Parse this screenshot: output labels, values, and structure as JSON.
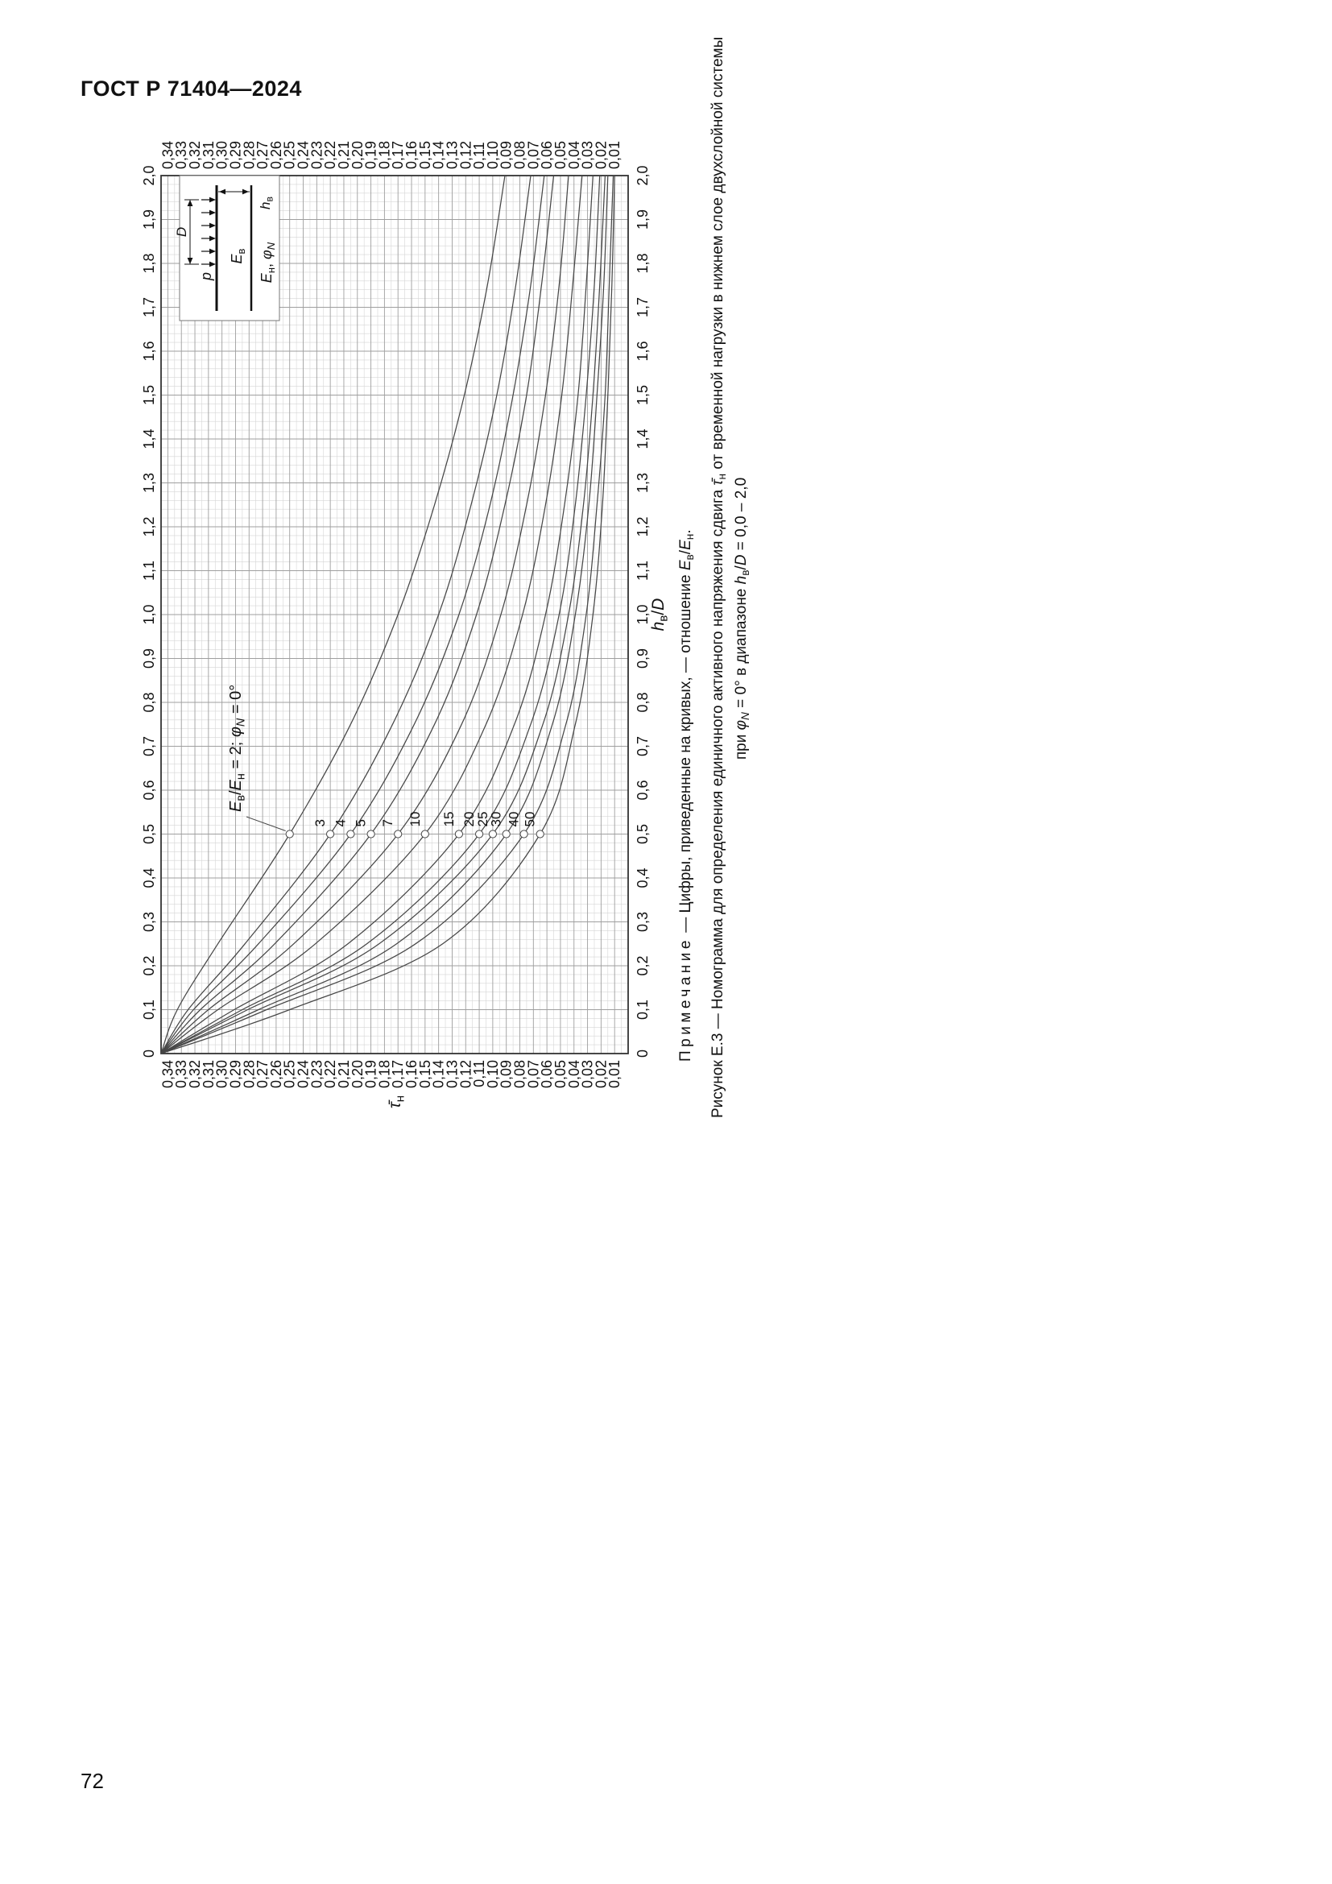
{
  "page": {
    "header": "ГОСТ Р 71404—2024",
    "page_number": "72"
  },
  "chart_data": {
    "type": "line",
    "grid": "on",
    "x_axis": {
      "min": 0,
      "max": 2.0,
      "major_step": 0.1,
      "minor_step": 0.02,
      "tick_labels": [
        "0",
        "0,1",
        "0,2",
        "0,3",
        "0,4",
        "0,5",
        "0,6",
        "0,7",
        "0,8",
        "0,9",
        "1,0",
        "1,1",
        "1,2",
        "1,3",
        "1,4",
        "1,5",
        "1,6",
        "1,7",
        "1,8",
        "1,9",
        "2,0"
      ],
      "title_segments": [
        {
          "t": "h",
          "i": true
        },
        {
          "t": "в",
          "sub": true
        },
        {
          "t": "/"
        },
        {
          "t": "D",
          "i": true
        }
      ]
    },
    "y_axis": {
      "min": 0,
      "max": 0.345,
      "major_step": 0.01,
      "minor_step": 0.005,
      "tick_labels": [
        "0,01",
        "0,02",
        "0,03",
        "0,04",
        "0,05",
        "0,06",
        "0,07",
        "0,08",
        "0,09",
        "0,10",
        "0,11",
        "0,12",
        "0,13",
        "0,14",
        "0,15",
        "0,16",
        "0,17",
        "0,18",
        "0,19",
        "0,20",
        "0,21",
        "0,22",
        "0,23",
        "0,24",
        "0,25",
        "0,26",
        "0,27",
        "0,28",
        "0,29",
        "0,30",
        "0,31",
        "0,32",
        "0,33",
        "0,34"
      ],
      "title_segments": [
        {
          "t": "τ̄",
          "i": true
        },
        {
          "t": "н",
          "sub": true
        }
      ]
    },
    "sample_x": [
      0,
      0.1,
      0.25,
      0.5,
      0.75,
      1.0,
      1.25,
      1.5,
      1.75,
      2.0
    ],
    "series": [
      {
        "label": "2",
        "tau": [
          0.345,
          0.333,
          0.303,
          0.25,
          0.205,
          0.17,
          0.143,
          0.121,
          0.104,
          0.091
        ]
      },
      {
        "label": "3",
        "tau": [
          0.345,
          0.325,
          0.283,
          0.22,
          0.174,
          0.14,
          0.116,
          0.097,
          0.083,
          0.072
        ]
      },
      {
        "label": "4",
        "tau": [
          0.345,
          0.321,
          0.273,
          0.205,
          0.158,
          0.125,
          0.102,
          0.085,
          0.072,
          0.062
        ]
      },
      {
        "label": "5",
        "tau": [
          0.345,
          0.316,
          0.261,
          0.19,
          0.143,
          0.112,
          0.091,
          0.075,
          0.064,
          0.055
        ]
      },
      {
        "label": "7",
        "tau": [
          0.345,
          0.31,
          0.247,
          0.17,
          0.123,
          0.094,
          0.075,
          0.061,
          0.051,
          0.044
        ]
      },
      {
        "label": "10",
        "tau": [
          0.345,
          0.303,
          0.231,
          0.15,
          0.105,
          0.078,
          0.061,
          0.049,
          0.041,
          0.034
        ]
      },
      {
        "label": "15",
        "tau": [
          0.345,
          0.291,
          0.207,
          0.125,
          0.084,
          0.061,
          0.047,
          0.037,
          0.031,
          0.026
        ]
      },
      {
        "label": "20",
        "tau": [
          0.345,
          0.285,
          0.193,
          0.11,
          0.072,
          0.051,
          0.039,
          0.031,
          0.025,
          0.021
        ]
      },
      {
        "label": "25",
        "tau": [
          0.345,
          0.281,
          0.184,
          0.1,
          0.063,
          0.044,
          0.033,
          0.026,
          0.021,
          0.017
        ]
      },
      {
        "label": "30",
        "tau": [
          0.345,
          0.273,
          0.171,
          0.09,
          0.056,
          0.039,
          0.029,
          0.023,
          0.018,
          0.015
        ]
      },
      {
        "label": "40",
        "tau": [
          0.345,
          0.267,
          0.157,
          0.077,
          0.046,
          0.031,
          0.023,
          0.017,
          0.014,
          0.011
        ]
      },
      {
        "label": "50",
        "tau": [
          0.345,
          0.25,
          0.137,
          0.065,
          0.039,
          0.026,
          0.019,
          0.015,
          0.012,
          0.01
        ]
      }
    ],
    "curve_label_x": 0.5,
    "annotation": {
      "target_label": "2",
      "segments": [
        {
          "t": "E",
          "i": true
        },
        {
          "t": "в",
          "sub": true
        },
        {
          "t": "/"
        },
        {
          "t": "E",
          "i": true
        },
        {
          "t": "н",
          "sub": true
        },
        {
          "t": " = 2; "
        },
        {
          "t": "φ",
          "i": true
        },
        {
          "t": "N",
          "i": true,
          "sub": true
        },
        {
          "t": " = 0°"
        }
      ]
    },
    "inset": {
      "labels": {
        "load": [
          {
            "t": "p",
            "i": true
          }
        ],
        "diameter": [
          {
            "t": "D",
            "i": true
          }
        ],
        "upper_layer": [
          {
            "t": "E",
            "i": true
          },
          {
            "t": "в",
            "sub": true
          }
        ],
        "thickness": [
          {
            "t": "h",
            "i": true
          },
          {
            "t": "в",
            "sub": true
          }
        ],
        "lower_layer": [
          {
            "t": "E",
            "i": true
          },
          {
            "t": "н",
            "sub": true
          },
          {
            "t": ", "
          },
          {
            "t": "φ",
            "i": true
          },
          {
            "t": "N",
            "i": true,
            "sub": true
          }
        ]
      }
    },
    "note_segments": [
      {
        "t": "Примечание",
        "sp": true
      },
      {
        "t": " — Цифры, приведенные на кривых, — отношение "
      },
      {
        "t": "E",
        "i": true
      },
      {
        "t": "в",
        "sub": true
      },
      {
        "t": "/"
      },
      {
        "t": "E",
        "i": true
      },
      {
        "t": "н",
        "sub": true
      },
      {
        "t": "."
      }
    ],
    "caption_line1_segments": [
      {
        "t": "Рисунок Е.3 — Номограмма для определения единичного активного напряжения сдвига "
      },
      {
        "t": "τ̄",
        "i": true
      },
      {
        "t": "н",
        "sub": true
      },
      {
        "t": " от временной нагрузки в нижнем слое двухслойной системы"
      }
    ],
    "caption_line2_segments": [
      {
        "t": "при "
      },
      {
        "t": "φ",
        "i": true
      },
      {
        "t": "N",
        "i": true,
        "sub": true
      },
      {
        "t": " = 0° в диапазоне "
      },
      {
        "t": "h",
        "i": true
      },
      {
        "t": "в",
        "sub": true
      },
      {
        "t": "/"
      },
      {
        "t": "D",
        "i": true
      },
      {
        "t": " = 0,0 – 2,0"
      }
    ]
  }
}
